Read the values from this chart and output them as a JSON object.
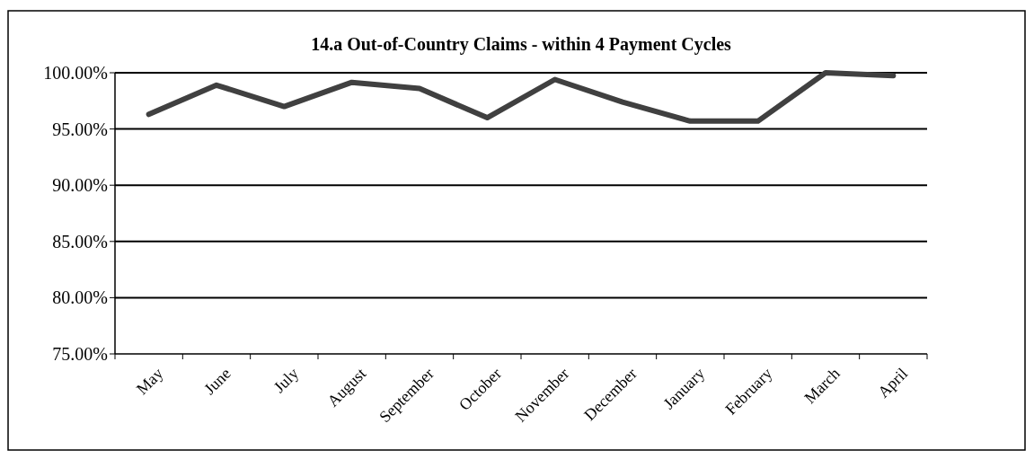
{
  "chart_data": {
    "type": "line",
    "title": "14.a Out-of-Country Claims - within 4 Payment Cycles",
    "categories": [
      "May",
      "June",
      "July",
      "August",
      "September",
      "October",
      "November",
      "December",
      "January",
      "February",
      "March",
      "April"
    ],
    "series": [
      {
        "color": "#404040",
        "values": [
          96.3,
          98.9,
          97.0,
          99.15,
          98.6,
          96.0,
          99.4,
          97.4,
          95.7,
          95.7,
          100.0,
          99.75
        ]
      }
    ],
    "ylim": [
      75,
      100
    ],
    "yticks": [
      {
        "value": 75,
        "label": "75.00%"
      },
      {
        "value": 80,
        "label": "80.00%"
      },
      {
        "value": 85,
        "label": "85.00%"
      },
      {
        "value": 90,
        "label": "90.00%"
      },
      {
        "value": 95,
        "label": "95.00%"
      },
      {
        "value": 100,
        "label": "100.00%"
      }
    ],
    "grid": "y",
    "marker": "none",
    "line_style": "solid"
  }
}
